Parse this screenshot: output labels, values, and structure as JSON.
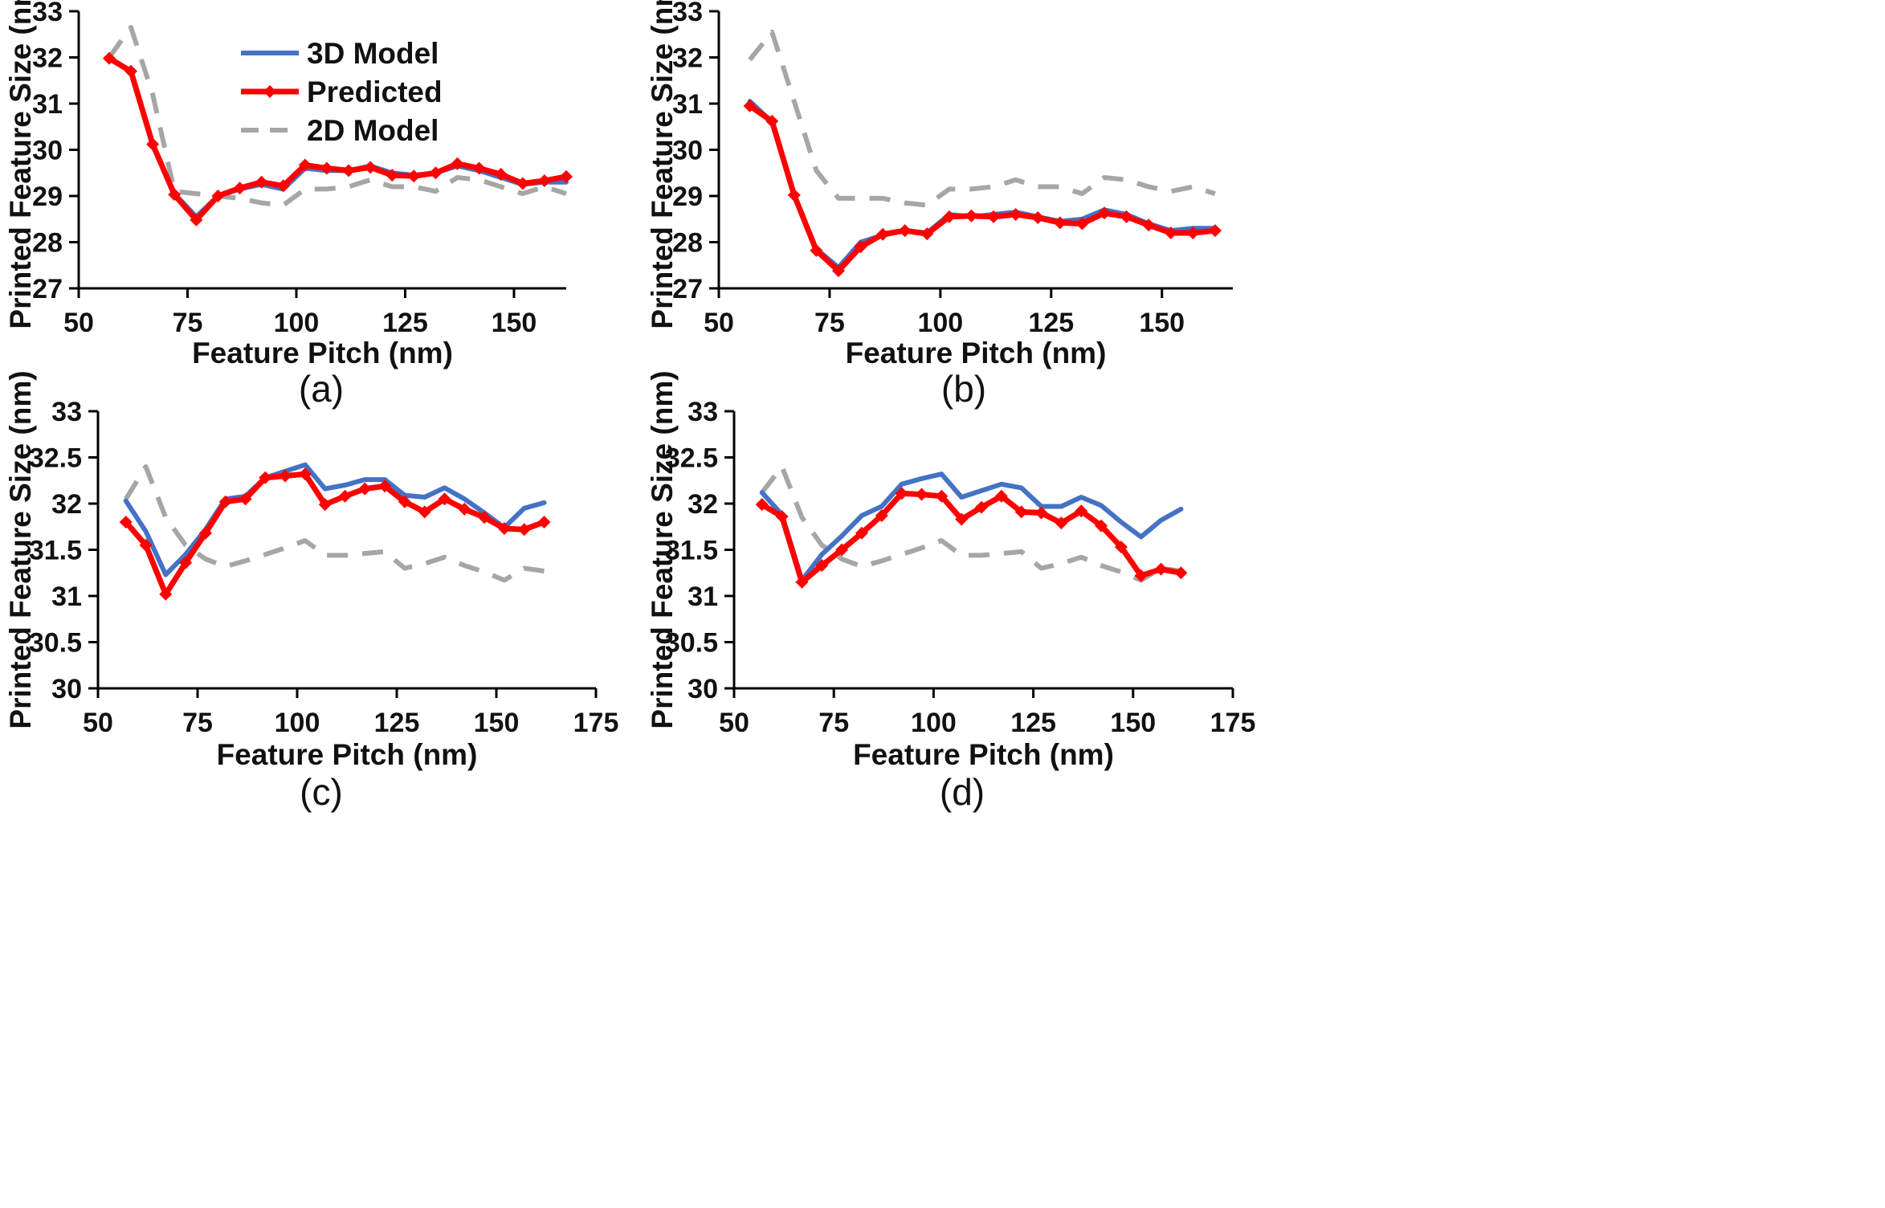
{
  "colors": {
    "model_3d": "#4472C4",
    "predicted": "#FF0000",
    "model_2d": "#A6A6A6",
    "axis": "#000000"
  },
  "chart_data": [
    {
      "panel": "(a)",
      "type": "line",
      "xlabel": "Feature Pitch (nm)",
      "ylabel": "Printed Feature Size (nm)",
      "xlim": [
        50,
        162
      ],
      "ylim": [
        27,
        33
      ],
      "xticks": [
        "50",
        "75",
        "100",
        "125",
        "150"
      ],
      "yticks": [
        "27",
        "28",
        "29",
        "30",
        "31",
        "32",
        "33"
      ],
      "x": [
        57,
        62,
        67,
        72,
        77,
        82,
        87,
        92,
        97,
        102,
        107,
        112,
        117,
        122,
        127,
        132,
        137,
        142,
        147,
        152,
        157,
        162
      ],
      "series": [
        {
          "name": "3D Model",
          "style": "solid",
          "values": [
            32.0,
            31.7,
            30.1,
            29.05,
            28.55,
            29.0,
            29.15,
            29.25,
            29.15,
            29.6,
            29.55,
            29.55,
            29.65,
            29.5,
            29.45,
            29.5,
            29.65,
            29.55,
            29.4,
            29.25,
            29.3,
            29.3
          ]
        },
        {
          "name": "Predicted",
          "style": "marker",
          "values": [
            31.98,
            31.7,
            30.12,
            29.03,
            28.48,
            29.0,
            29.17,
            29.3,
            29.22,
            29.67,
            29.6,
            29.55,
            29.62,
            29.45,
            29.43,
            29.5,
            29.7,
            29.6,
            29.47,
            29.27,
            29.33,
            29.42
          ]
        },
        {
          "name": "2D Model",
          "style": "dashed",
          "values": [
            32.0,
            32.65,
            31.2,
            29.1,
            29.05,
            29.0,
            28.95,
            28.85,
            28.8,
            29.15,
            29.15,
            29.2,
            29.35,
            29.2,
            29.2,
            29.1,
            29.4,
            29.35,
            29.2,
            29.05,
            29.2,
            29.05
          ]
        }
      ],
      "legend": {
        "position": "top-left",
        "entries": [
          "3D Model",
          "Predicted",
          "2D Model"
        ]
      }
    },
    {
      "panel": "(b)",
      "type": "line",
      "xlabel": "Feature Pitch (nm)",
      "ylabel": "Printed Feature Size (nm)",
      "xlim": [
        50,
        166
      ],
      "ylim": [
        27,
        33
      ],
      "xticks": [
        "50",
        "75",
        "100",
        "125",
        "150"
      ],
      "yticks": [
        "27",
        "28",
        "29",
        "30",
        "31",
        "32",
        "33"
      ],
      "x": [
        57,
        62,
        67,
        72,
        77,
        82,
        87,
        92,
        97,
        102,
        107,
        112,
        117,
        122,
        127,
        132,
        137,
        142,
        147,
        152,
        157,
        162
      ],
      "series": [
        {
          "name": "3D Model",
          "style": "solid",
          "values": [
            31.05,
            30.6,
            29.0,
            27.85,
            27.45,
            28.0,
            28.15,
            28.25,
            28.2,
            28.6,
            28.55,
            28.6,
            28.65,
            28.55,
            28.45,
            28.5,
            28.7,
            28.6,
            28.4,
            28.25,
            28.3,
            28.3
          ]
        },
        {
          "name": "Predicted",
          "style": "marker",
          "values": [
            30.95,
            30.62,
            29.02,
            27.82,
            27.38,
            27.9,
            28.17,
            28.25,
            28.18,
            28.55,
            28.57,
            28.55,
            28.6,
            28.53,
            28.42,
            28.4,
            28.63,
            28.55,
            28.37,
            28.2,
            28.2,
            28.25
          ]
        },
        {
          "name": "2D Model",
          "style": "dashed",
          "values": [
            31.95,
            32.55,
            31.05,
            29.55,
            28.95,
            28.95,
            28.95,
            28.85,
            28.8,
            29.15,
            29.15,
            29.2,
            29.35,
            29.2,
            29.2,
            29.05,
            29.4,
            29.35,
            29.2,
            29.1,
            29.2,
            29.05
          ]
        }
      ]
    },
    {
      "panel": "(c)",
      "type": "line",
      "xlabel": "Feature Pitch (nm)",
      "ylabel": "Printed Feature Size (nm)",
      "xlim": [
        50,
        175
      ],
      "ylim": [
        30,
        33
      ],
      "xticks": [
        "50",
        "75",
        "100",
        "125",
        "150",
        "175"
      ],
      "yticks": [
        "30",
        "30.5",
        "31",
        "31.5",
        "32",
        "32.5",
        "33"
      ],
      "x": [
        57,
        62,
        67,
        72,
        77,
        82,
        87,
        92,
        97,
        102,
        107,
        112,
        117,
        122,
        127,
        132,
        137,
        142,
        147,
        152,
        157,
        162
      ],
      "series": [
        {
          "name": "3D Model",
          "style": "solid",
          "values": [
            32.03,
            31.7,
            31.23,
            31.45,
            31.72,
            32.05,
            32.08,
            32.28,
            32.35,
            32.42,
            32.16,
            32.2,
            32.26,
            32.26,
            32.09,
            32.07,
            32.17,
            32.05,
            31.9,
            31.74,
            31.95,
            32.01
          ]
        },
        {
          "name": "Predicted",
          "style": "marker",
          "values": [
            31.8,
            31.55,
            31.02,
            31.36,
            31.68,
            32.02,
            32.05,
            32.28,
            32.3,
            32.32,
            31.99,
            32.08,
            32.16,
            32.19,
            32.02,
            31.91,
            32.05,
            31.94,
            31.85,
            31.73,
            31.72,
            31.8
          ]
        },
        {
          "name": "2D Model",
          "style": "dashed",
          "values": [
            32.05,
            32.4,
            31.85,
            31.55,
            31.4,
            31.32,
            31.38,
            31.45,
            31.52,
            31.6,
            31.44,
            31.44,
            31.46,
            31.48,
            31.3,
            31.35,
            31.42,
            31.33,
            31.26,
            31.17,
            31.3,
            31.27
          ]
        }
      ]
    },
    {
      "panel": "(d)",
      "type": "line",
      "xlabel": "Feature Pitch (nm)",
      "ylabel": "Printed Feature Size (nm)",
      "xlim": [
        50,
        175
      ],
      "ylim": [
        30,
        33
      ],
      "xticks": [
        "50",
        "75",
        "100",
        "125",
        "150",
        "175"
      ],
      "yticks": [
        "30",
        "30.5",
        "31",
        "31.5",
        "32",
        "32.5",
        "33"
      ],
      "x": [
        57,
        62,
        67,
        72,
        77,
        82,
        87,
        92,
        97,
        102,
        107,
        112,
        117,
        122,
        127,
        132,
        137,
        142,
        147,
        152,
        157,
        162
      ],
      "series": [
        {
          "name": "3D Model",
          "style": "solid",
          "values": [
            32.12,
            31.88,
            31.17,
            31.45,
            31.65,
            31.87,
            31.97,
            32.21,
            32.27,
            32.32,
            32.07,
            32.14,
            32.21,
            32.17,
            31.97,
            31.97,
            32.07,
            31.98,
            31.8,
            31.64,
            31.82,
            31.94
          ]
        },
        {
          "name": "Predicted",
          "style": "marker",
          "values": [
            31.99,
            31.86,
            31.15,
            31.33,
            31.5,
            31.68,
            31.87,
            32.11,
            32.1,
            32.08,
            31.83,
            31.96,
            32.08,
            31.91,
            31.9,
            31.79,
            31.92,
            31.76,
            31.53,
            31.22,
            31.29,
            31.25
          ]
        },
        {
          "name": "2D Model",
          "style": "dashed",
          "values": [
            32.12,
            32.4,
            31.85,
            31.55,
            31.4,
            31.32,
            31.38,
            31.45,
            31.52,
            31.6,
            31.44,
            31.44,
            31.46,
            31.48,
            31.3,
            31.35,
            31.42,
            31.33,
            31.26,
            31.17,
            31.3,
            31.27
          ]
        }
      ]
    }
  ]
}
